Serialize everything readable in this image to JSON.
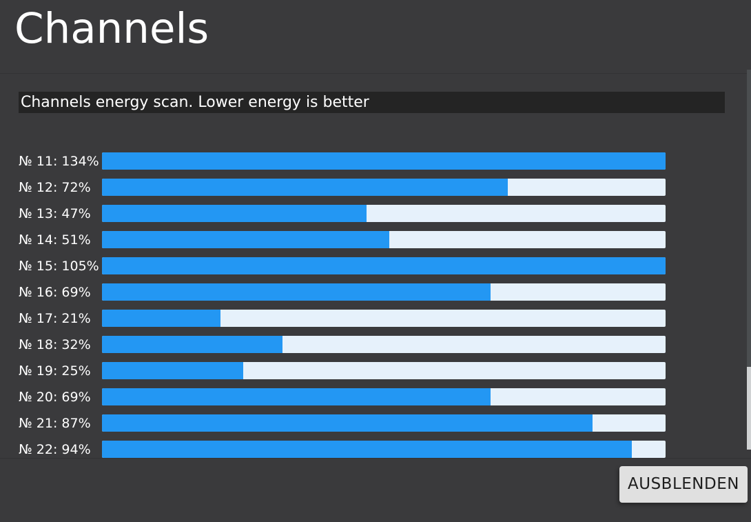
{
  "header": {
    "title": "Channels"
  },
  "chart": {
    "subtitle": "Channels energy scan. Lower energy is better",
    "channels": [
      {
        "label": "№ 11: 134%",
        "number": 11,
        "value": 134
      },
      {
        "label": "№ 12: 72%",
        "number": 12,
        "value": 72
      },
      {
        "label": "№ 13: 47%",
        "number": 13,
        "value": 47
      },
      {
        "label": "№ 14: 51%",
        "number": 14,
        "value": 51
      },
      {
        "label": "№ 15: 105%",
        "number": 15,
        "value": 105
      },
      {
        "label": "№ 16: 69%",
        "number": 16,
        "value": 69
      },
      {
        "label": "№ 17: 21%",
        "number": 17,
        "value": 21
      },
      {
        "label": "№ 18: 32%",
        "number": 18,
        "value": 32
      },
      {
        "label": "№ 19: 25%",
        "number": 19,
        "value": 25
      },
      {
        "label": "№ 20: 69%",
        "number": 20,
        "value": 69
      },
      {
        "label": "№ 21: 87%",
        "number": 21,
        "value": 87
      },
      {
        "label": "№ 22: 94%",
        "number": 22,
        "value": 94
      }
    ]
  },
  "footer": {
    "hide_button_label": "AUSBLENDEN"
  },
  "colors": {
    "background": "#3a3a3c",
    "header_divider": "#323234",
    "subtitle_background": "#242424",
    "text": "#ffffff",
    "bar_fill": "#2397f3",
    "bar_track": "#e6f1fb",
    "button_background": "#e0e0e0",
    "button_text": "#1e1e1e",
    "scrollbar_thumb": "#4b4e50",
    "scrollbar_track": "#d0d2d3"
  },
  "chart_data": {
    "type": "bar",
    "orientation": "horizontal",
    "title": "Channels energy scan. Lower energy is better",
    "categories": [
      "№ 11",
      "№ 12",
      "№ 13",
      "№ 14",
      "№ 15",
      "№ 16",
      "№ 17",
      "№ 18",
      "№ 19",
      "№ 20",
      "№ 21",
      "№ 22"
    ],
    "values": [
      134,
      72,
      47,
      51,
      105,
      69,
      21,
      32,
      25,
      69,
      87,
      94
    ],
    "unit": "%",
    "xlim": [
      0,
      100
    ],
    "legend": "none",
    "grid": "off",
    "note": "bar fill width is capped at 100% of track; values above 100% render as full bars"
  }
}
